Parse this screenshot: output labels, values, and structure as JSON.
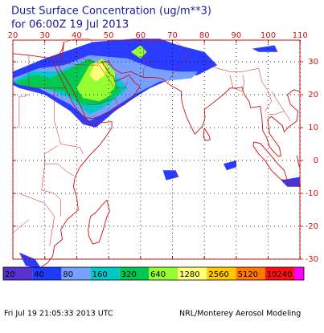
{
  "title": "Dust Surface Concentration (ug/m**3)",
  "subtitle": "for 06:00Z 19 Jul 2013",
  "lon_ticks": [
    20,
    30,
    40,
    50,
    60,
    70,
    80,
    90,
    100,
    110
  ],
  "lat_ticks": [
    30,
    20,
    10,
    0,
    -10,
    -20,
    -30
  ],
  "colorbar": {
    "labels": [
      20,
      40,
      80,
      160,
      320,
      640,
      1280,
      2560,
      5120,
      10240
    ],
    "colors": [
      "#5a30d0",
      "#1e3cff",
      "#78a0ff",
      "#00c8c8",
      "#00c850",
      "#96ff32",
      "#ffff78",
      "#ffc800",
      "#ff7800",
      "#ff1010"
    ],
    "end_color": "#ff00ff"
  },
  "footer": {
    "left": "Fri Jul 19 21:05:33 2013 UTC",
    "right": "NRL/Monterey Aerosol Modeling"
  }
}
